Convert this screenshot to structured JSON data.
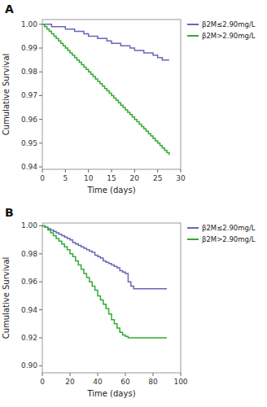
{
  "chart_data": [
    {
      "type": "step",
      "title": "A",
      "xlabel": "Time (days)",
      "ylabel": "Cumulative Survival",
      "xlim": [
        0,
        30
      ],
      "ylim": [
        0.939,
        1.002
      ],
      "xticks": [
        0,
        5,
        10,
        15,
        20,
        25,
        30
      ],
      "yticks": [
        0.94,
        0.95,
        0.96,
        0.97,
        0.98,
        0.99,
        {
          "value": 1.0,
          "label": "1.00"
        }
      ],
      "grid": false,
      "legend": "right",
      "series": [
        {
          "name": "β2M≤2.90mg/L",
          "color": "#6666bb",
          "x": [
            0,
            1,
            2,
            3,
            4,
            5,
            6,
            7,
            8,
            9,
            10,
            11,
            12,
            13,
            14,
            15,
            16,
            17,
            18,
            19,
            20,
            21,
            22,
            23,
            24,
            25,
            26,
            27,
            27.5
          ],
          "values": [
            1.0,
            1.0,
            0.999,
            0.999,
            0.999,
            0.998,
            0.998,
            0.997,
            0.997,
            0.996,
            0.995,
            0.995,
            0.994,
            0.994,
            0.993,
            0.992,
            0.992,
            0.991,
            0.991,
            0.99,
            0.989,
            0.989,
            0.988,
            0.988,
            0.987,
            0.986,
            0.985,
            0.985,
            0.985
          ]
        },
        {
          "name": "β2M>2.90mg/L",
          "color": "#33aa33",
          "x": [
            0,
            0.5,
            1,
            1.5,
            2,
            2.5,
            3,
            3.5,
            4,
            4.5,
            5,
            5.5,
            6,
            6.5,
            7,
            7.5,
            8,
            8.5,
            9,
            9.5,
            10,
            10.5,
            11,
            11.5,
            12,
            12.5,
            13,
            13.5,
            14,
            14.5,
            15,
            15.5,
            16,
            16.5,
            17,
            17.5,
            18,
            18.5,
            19,
            19.5,
            20,
            20.5,
            21,
            21.5,
            22,
            22.5,
            23,
            23.5,
            24,
            24.5,
            25,
            25.5,
            26,
            26.5,
            27,
            27.5
          ],
          "values": [
            1.0,
            0.999,
            0.998,
            0.997,
            0.996,
            0.995,
            0.994,
            0.993,
            0.992,
            0.991,
            0.99,
            0.989,
            0.988,
            0.987,
            0.986,
            0.985,
            0.984,
            0.983,
            0.982,
            0.981,
            0.98,
            0.979,
            0.978,
            0.977,
            0.976,
            0.975,
            0.974,
            0.973,
            0.972,
            0.971,
            0.97,
            0.969,
            0.968,
            0.967,
            0.966,
            0.965,
            0.964,
            0.963,
            0.962,
            0.961,
            0.96,
            0.959,
            0.958,
            0.957,
            0.956,
            0.955,
            0.954,
            0.953,
            0.952,
            0.951,
            0.95,
            0.949,
            0.948,
            0.947,
            0.946,
            0.945
          ]
        }
      ]
    },
    {
      "type": "step",
      "title": "B",
      "xlabel": "Time (days)",
      "ylabel": "Cumulative Survival",
      "xlim": [
        0,
        100
      ],
      "ylim": [
        0.895,
        1.002
      ],
      "xticks": [
        0,
        20,
        40,
        60,
        80,
        100
      ],
      "yticks": [
        {
          "value": 0.9,
          "label": "0.90"
        },
        0.92,
        0.94,
        0.96,
        0.98,
        {
          "value": 1.0,
          "label": "1.00"
        }
      ],
      "grid": false,
      "legend": "right",
      "series": [
        {
          "name": "β2M≤2.90mg/L",
          "color": "#6666bb",
          "x": [
            0,
            2,
            4,
            6,
            8,
            10,
            12,
            14,
            16,
            18,
            20,
            22,
            24,
            26,
            28,
            30,
            32,
            34,
            36,
            38,
            40,
            42,
            44,
            46,
            48,
            50,
            52,
            54,
            56,
            58,
            60,
            62,
            64,
            66,
            90
          ],
          "values": [
            1.0,
            0.999,
            0.998,
            0.997,
            0.996,
            0.995,
            0.994,
            0.993,
            0.992,
            0.991,
            0.99,
            0.988,
            0.987,
            0.986,
            0.985,
            0.984,
            0.983,
            0.982,
            0.981,
            0.979,
            0.978,
            0.977,
            0.975,
            0.974,
            0.973,
            0.972,
            0.971,
            0.97,
            0.968,
            0.967,
            0.966,
            0.96,
            0.957,
            0.955,
            0.955
          ]
        },
        {
          "name": "β2M>2.90mg/L",
          "color": "#33aa33",
          "x": [
            0,
            2,
            4,
            6,
            8,
            10,
            12,
            14,
            16,
            18,
            20,
            22,
            24,
            26,
            28,
            30,
            32,
            34,
            36,
            38,
            40,
            42,
            44,
            46,
            48,
            50,
            52,
            54,
            56,
            58,
            60,
            62,
            64,
            66,
            90
          ],
          "values": [
            1.0,
            0.999,
            0.997,
            0.995,
            0.993,
            0.991,
            0.989,
            0.987,
            0.985,
            0.983,
            0.98,
            0.978,
            0.975,
            0.972,
            0.969,
            0.966,
            0.963,
            0.96,
            0.957,
            0.954,
            0.95,
            0.947,
            0.944,
            0.941,
            0.937,
            0.933,
            0.93,
            0.927,
            0.924,
            0.922,
            0.921,
            0.92,
            0.92,
            0.92,
            0.92
          ]
        }
      ]
    }
  ]
}
